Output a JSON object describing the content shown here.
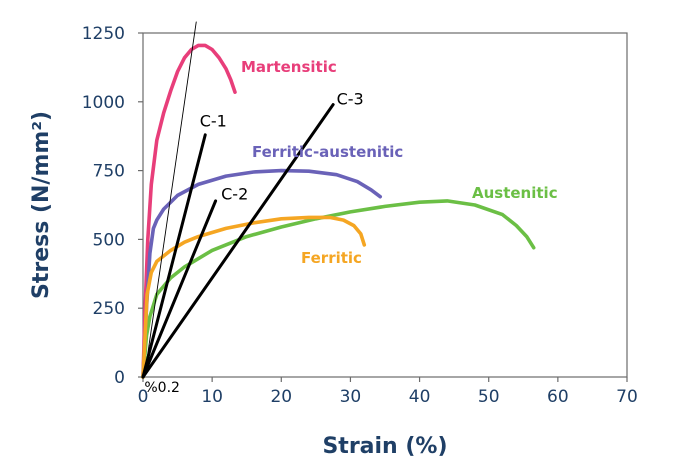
{
  "chart_data": {
    "type": "line",
    "title": "",
    "xlabel": "Strain (%)",
    "ylabel": "Stress (N/mm²)",
    "xlim": [
      0,
      70
    ],
    "ylim": [
      0,
      1250
    ],
    "xticks": [
      0,
      10,
      20,
      30,
      40,
      50,
      60,
      70
    ],
    "yticks": [
      0,
      250,
      500,
      750,
      1000,
      1250
    ],
    "grid": false,
    "legend": "inline-labels",
    "series": [
      {
        "name": "Martensitic",
        "color": "#e83e7a",
        "x": [
          0,
          0.3,
          0.7,
          1.2,
          2,
          3,
          4,
          5,
          6,
          7,
          8,
          9,
          10,
          11,
          12,
          12.7,
          13.3
        ],
        "y": [
          0,
          250,
          500,
          700,
          860,
          960,
          1040,
          1110,
          1160,
          1190,
          1205,
          1205,
          1190,
          1160,
          1120,
          1080,
          1035
        ]
      },
      {
        "name": "Ferritic-austenitic",
        "color": "#6a62b8",
        "x": [
          0,
          0.5,
          1,
          1.5,
          2,
          3,
          5,
          8,
          12,
          16,
          20,
          24,
          28,
          31,
          33,
          34.3
        ],
        "y": [
          0,
          250,
          450,
          540,
          570,
          610,
          660,
          700,
          730,
          745,
          750,
          748,
          735,
          710,
          680,
          655
        ]
      },
      {
        "name": "Austenitic",
        "color": "#6bbf45",
        "x": [
          0,
          0.5,
          1,
          2,
          4,
          6,
          10,
          15,
          20,
          25,
          30,
          35,
          40,
          44,
          48,
          52,
          54,
          55.5,
          56.5
        ],
        "y": [
          0,
          150,
          220,
          300,
          360,
          400,
          460,
          510,
          545,
          575,
          600,
          620,
          635,
          640,
          625,
          590,
          550,
          510,
          470
        ]
      },
      {
        "name": "Ferritic",
        "color": "#f5a623",
        "x": [
          0,
          0.6,
          1.2,
          2,
          4,
          6,
          8,
          12,
          16,
          20,
          24,
          27,
          29,
          30.5,
          31.5,
          32
        ],
        "y": [
          0,
          300,
          380,
          420,
          460,
          490,
          510,
          540,
          560,
          575,
          580,
          580,
          570,
          550,
          520,
          480
        ]
      }
    ],
    "reference_lines": [
      {
        "name": "C-1",
        "x": [
          0,
          9
        ],
        "y": [
          0,
          880
        ]
      },
      {
        "name": "C-2",
        "x": [
          0,
          10.5
        ],
        "y": [
          0,
          640
        ]
      },
      {
        "name": "C-3",
        "x": [
          0,
          27.5
        ],
        "y": [
          0,
          990
        ]
      },
      {
        "x": [
          0.2,
          7.7
        ],
        "y": [
          0,
          1290
        ]
      }
    ],
    "annotations": [
      {
        "text": "C-1",
        "x": 8.2,
        "y": 910
      },
      {
        "text": "C-2",
        "x": 11.3,
        "y": 645
      },
      {
        "text": "C-3",
        "x": 28,
        "y": 990
      },
      {
        "text": "%0.2",
        "x": 0.2,
        "y": -55
      }
    ]
  }
}
